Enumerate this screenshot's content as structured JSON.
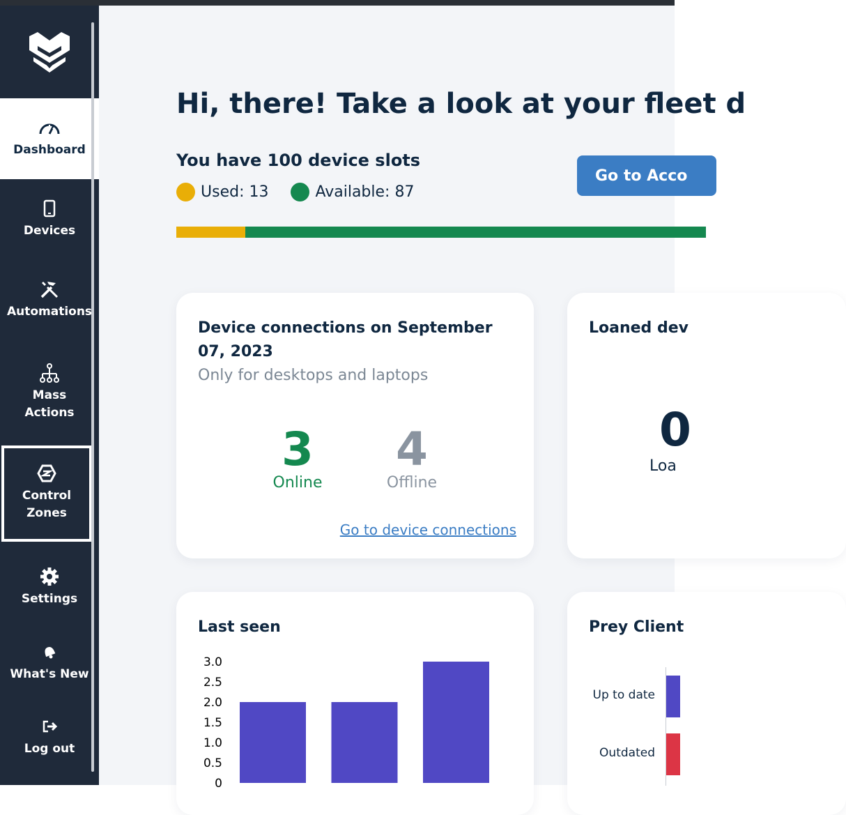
{
  "sidebar": {
    "items": [
      {
        "label": "Dashboard",
        "icon": "gauge-icon"
      },
      {
        "label": "Devices",
        "icon": "tablet-icon"
      },
      {
        "label": "Automations",
        "icon": "tools-icon"
      },
      {
        "label": "Mass\nActions",
        "icon": "hierarchy-icon"
      },
      {
        "label": "Control\nZones",
        "icon": "zone-icon"
      },
      {
        "label": "Settings",
        "icon": "gear-icon"
      },
      {
        "label": "What's New",
        "icon": "bell-icon"
      },
      {
        "label": "Log out",
        "icon": "logout-icon"
      }
    ]
  },
  "header": {
    "greeting": "Hi, there! Take a look at your fleet d",
    "slots_title": "You have 100 device slots",
    "used_label": "Used: 13",
    "available_label": "Available: 87",
    "used_fraction": 0.13,
    "account_button": "Go to Acco"
  },
  "colors": {
    "used": "#e9ae07",
    "available": "#14884f",
    "accent": "#3b7dc4",
    "bar_series": "#5048c4",
    "outdated": "#dc3545"
  },
  "connections_card": {
    "title": "Device connections on September 07, 2023",
    "subtitle": "Only for desktops and laptops",
    "online_value": "3",
    "online_label": "Online",
    "offline_value": "4",
    "offline_label": "Offline",
    "link": "Go to device connections"
  },
  "loaned_card": {
    "title": "Loaned dev",
    "value": "0",
    "label": "Loa"
  },
  "last_seen_card": {
    "title": "Last seen"
  },
  "prey_card": {
    "title": "Prey Client",
    "rows": [
      "Up to date",
      "Outdated"
    ]
  },
  "chart_data": {
    "type": "bar",
    "title": "Last seen",
    "xlabel": "",
    "ylabel": "",
    "categories": [
      "",
      "",
      ""
    ],
    "values": [
      2,
      2,
      3
    ],
    "ylim": [
      0,
      3
    ],
    "yticks": [
      "3.0",
      "2.5",
      "2.0",
      "1.5",
      "1.0",
      "0.5",
      "0"
    ],
    "grid": false
  }
}
